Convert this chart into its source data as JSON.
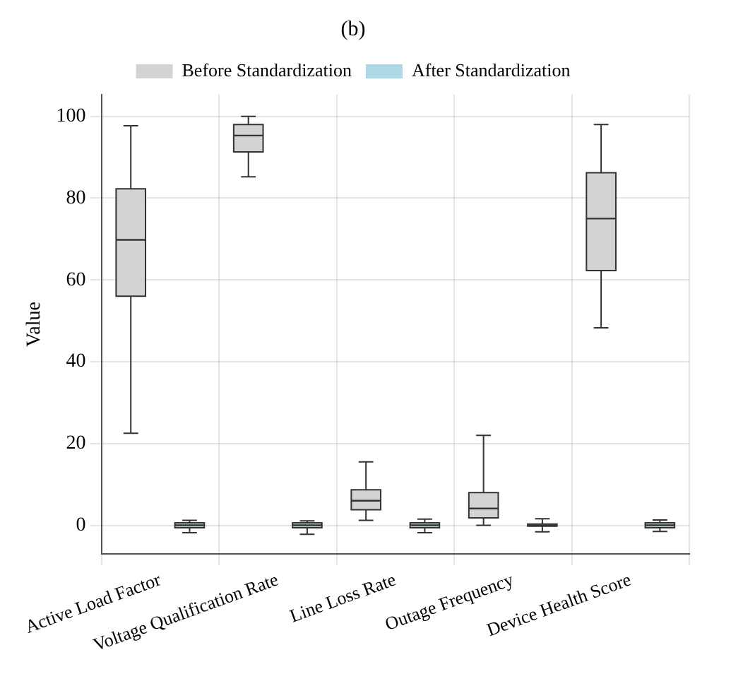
{
  "chart_data": {
    "type": "box",
    "title": "(b)",
    "ylabel": "Value",
    "categories": [
      "Active Load Factor",
      "Voltage Qualification Rate",
      "Line Loss Rate",
      "Outage Frequency",
      "Device Health Score"
    ],
    "series": [
      {
        "name": "Before Standardization",
        "color": "#d3d3d3",
        "boxes": [
          {
            "low": 22.5,
            "q1": 56,
            "median": 69.8,
            "q3": 82.3,
            "high": 97.7
          },
          {
            "low": 85.2,
            "q1": 91.3,
            "median": 95.3,
            "q3": 98,
            "high": 100
          },
          {
            "low": 1.2,
            "q1": 3.8,
            "median": 6,
            "q3": 8.7,
            "high": 15.5
          },
          {
            "low": 0,
            "q1": 1.8,
            "median": 4.1,
            "q3": 8,
            "high": 22
          },
          {
            "low": 48.3,
            "q1": 62.3,
            "median": 75,
            "q3": 86.2,
            "high": 98
          }
        ]
      },
      {
        "name": "After Standardization",
        "color": "#add8e6",
        "boxes": [
          {
            "low": -1.8,
            "q1": -0.6,
            "median": 0,
            "q3": 0.6,
            "high": 1.2
          },
          {
            "low": -2.2,
            "q1": -0.6,
            "median": 0,
            "q3": 0.6,
            "high": 1.1
          },
          {
            "low": -1.8,
            "q1": -0.6,
            "median": 0,
            "q3": 0.6,
            "high": 1.5
          },
          {
            "low": -1.6,
            "q1": -0.2,
            "median": 0,
            "q3": 0.3,
            "high": 1.6
          },
          {
            "low": -1.5,
            "q1": -0.6,
            "median": 0,
            "q3": 0.6,
            "high": 1.3
          }
        ]
      }
    ],
    "ylim": [
      -7,
      105.3
    ],
    "yticks": [
      0,
      20,
      40,
      60,
      80,
      100
    ],
    "grid": true,
    "legend": "top"
  }
}
